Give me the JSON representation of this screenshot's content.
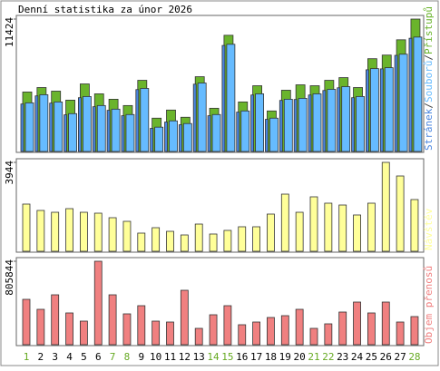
{
  "chart_data": [
    {
      "type": "bar",
      "title": "Denní statistika za únor 2026",
      "ylim": [
        0,
        11424
      ],
      "yticks": [
        11424
      ],
      "legend_separator": "/",
      "series": [
        {
          "name": "Stránek",
          "color": "#4a86e0",
          "values": [
            4096,
            4796,
            4174,
            3164,
            4640,
            3863,
            3552,
            3086,
            5340,
            1998,
            2542,
            2309,
            5806,
            3086,
            9147,
            3397,
            4873,
            2775,
            4407,
            4485,
            4873,
            5262,
            5495,
            4640,
            7049,
            7127,
            8293,
            9769
          ]
        },
        {
          "name": "Souborů",
          "color": "#66bbff",
          "values": [
            4196,
            4896,
            4274,
            3264,
            4740,
            3963,
            3652,
            3186,
            5440,
            2098,
            2642,
            2409,
            5906,
            3186,
            9247,
            3497,
            4973,
            2875,
            4507,
            4585,
            4973,
            5362,
            5595,
            4740,
            7149,
            7227,
            8393,
            9869
          ]
        },
        {
          "name": "Přístupů",
          "color": "#6ab42c",
          "values": [
            5130,
            5517,
            5206,
            4429,
            5828,
            4973,
            4507,
            3963,
            6139,
            2875,
            3574,
            2953,
            6450,
            3730,
            10024,
            4274,
            5672,
            3497,
            5284,
            5750,
            5672,
            6139,
            6372,
            5517,
            8004,
            8315,
            9636,
            11424
          ]
        }
      ]
    },
    {
      "type": "bar",
      "ylim": [
        0,
        3944
      ],
      "yticks": [
        3944
      ],
      "series": [
        {
          "name": "Návštěv",
          "color": "#ffff99",
          "values": [
            2093,
            1811,
            1730,
            1891,
            1730,
            1690,
            1489,
            1328,
            805,
            1046,
            885,
            724,
            1207,
            765,
            926,
            1087,
            1087,
            1650,
            2535,
            1730,
            2415,
            2133,
            2052,
            1610,
            2133,
            3944,
            3340,
            2294
          ]
        }
      ]
    },
    {
      "type": "bar",
      "ylim": [
        0,
        805844
      ],
      "yticks": [
        805844
      ],
      "series": [
        {
          "name": "Objem přenosů",
          "color": "#f08080",
          "values": [
            437950,
            341601,
            481745,
            306565,
            227734,
            805844,
            481745,
            297806,
            376637,
            227734,
            218975,
            525540,
            157662,
            289047,
            376637,
            192698,
            218975,
            262770,
            280288,
            341601,
            157662,
            201457,
            315324,
            411673,
            306565,
            411673,
            218975,
            271529
          ]
        }
      ],
      "categories": [
        "1",
        "2",
        "3",
        "4",
        "5",
        "6",
        "7",
        "8",
        "9",
        "10",
        "11",
        "12",
        "13",
        "14",
        "15",
        "16",
        "17",
        "18",
        "19",
        "20",
        "21",
        "22",
        "23",
        "24",
        "25",
        "26",
        "27",
        "28"
      ],
      "weekend": [
        true,
        false,
        false,
        false,
        false,
        false,
        true,
        true,
        false,
        false,
        false,
        false,
        false,
        true,
        true,
        false,
        false,
        false,
        false,
        false,
        true,
        true,
        false,
        false,
        false,
        false,
        false,
        true
      ],
      "weekend_color": "#66aa22",
      "weekday_color": "#000000"
    }
  ]
}
